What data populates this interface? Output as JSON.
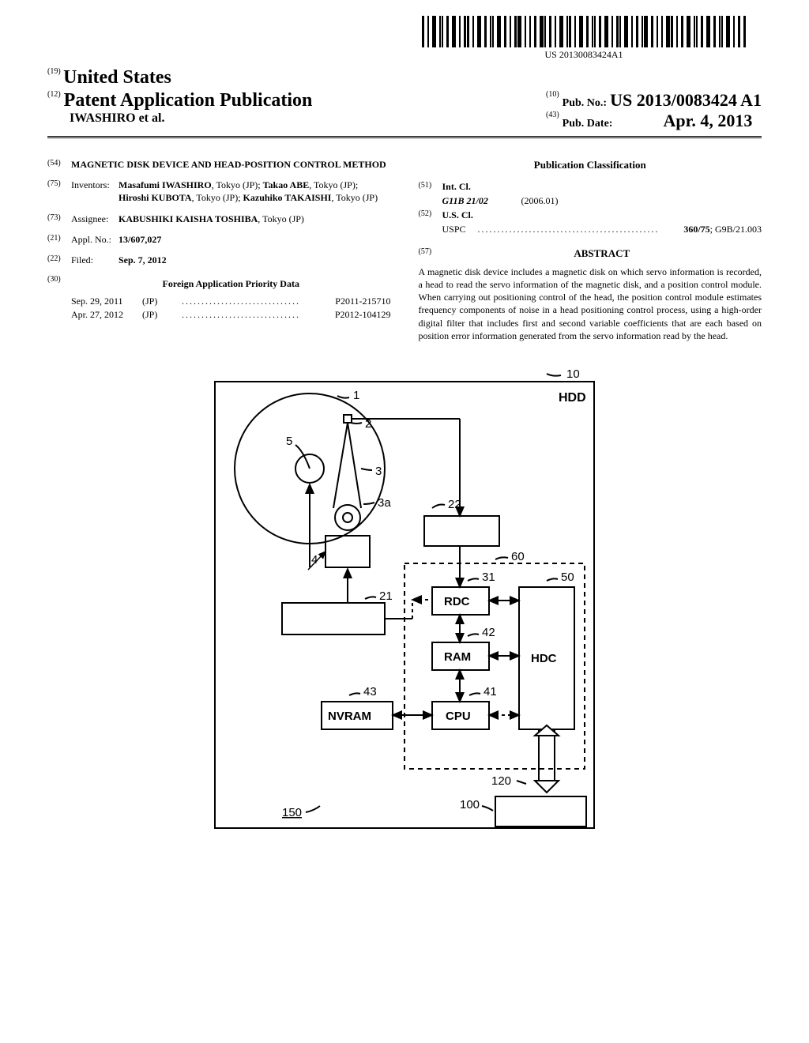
{
  "barcode_text": "US 20130083424A1",
  "header": {
    "line19_num": "(19)",
    "country": "United States",
    "line12_num": "(12)",
    "pub_type": "Patent Application Publication",
    "authors_line": "IWASHIRO et al.",
    "line10_num": "(10)",
    "pub_no_label": "Pub. No.:",
    "pub_no_value": "US 2013/0083424 A1",
    "line43_num": "(43)",
    "pub_date_label": "Pub. Date:",
    "pub_date_value": "Apr. 4, 2013"
  },
  "left": {
    "f54_num": "(54)",
    "title": "MAGNETIC DISK DEVICE AND HEAD-POSITION CONTROL METHOD",
    "f75_num": "(75)",
    "f75_label": "Inventors:",
    "inventors": [
      {
        "name": "Masafumi IWASHIRO",
        "loc": ", Tokyo (JP); "
      },
      {
        "name": "Takao ABE",
        "loc": ", Tokyo (JP); "
      },
      {
        "name": "Hiroshi KUBOTA",
        "loc": ", Tokyo (JP); "
      },
      {
        "name": "Kazuhiko TAKAISHI",
        "loc": ", Tokyo (JP)"
      }
    ],
    "f73_num": "(73)",
    "f73_label": "Assignee:",
    "assignee_name": "KABUSHIKI KAISHA TOSHIBA",
    "assignee_loc": ", Tokyo (JP)",
    "f21_num": "(21)",
    "f21_label": "Appl. No.:",
    "appl_no": "13/607,027",
    "f22_num": "(22)",
    "f22_label": "Filed:",
    "filed": "Sep. 7, 2012",
    "f30_num": "(30)",
    "priority_title": "Foreign Application Priority Data",
    "priority": [
      {
        "date": "Sep. 29, 2011",
        "country": "(JP)",
        "num": "P2011-215710"
      },
      {
        "date": "Apr. 27, 2012",
        "country": "(JP)",
        "num": "P2012-104129"
      }
    ]
  },
  "right": {
    "classification_title": "Publication Classification",
    "f51_num": "(51)",
    "f51_label": "Int. Cl.",
    "intcl_code": "G11B 21/02",
    "intcl_date": "(2006.01)",
    "f52_num": "(52)",
    "f52_label": "U.S. Cl.",
    "uscl_label": "USPC",
    "uscl_value": "360/75",
    "uscl_extra": "; G9B/21.003",
    "f57_num": "(57)",
    "abstract_title": "ABSTRACT",
    "abstract": "A magnetic disk device includes a magnetic disk on which servo information is recorded, a head to read the servo information of the magnetic disk, and a position control module. When carrying out positioning control of the head, the position control module estimates frequency components of noise in a head positioning control process, using a high-order digital filter that includes first and second variable coefficients that are each based on position error information generated from the servo information read by the head."
  },
  "figure": {
    "labels": {
      "hdd": "HDD",
      "rdc": "RDC",
      "ram": "RAM",
      "hdc": "HDC",
      "nvram": "NVRAM",
      "cpu": "CPU",
      "n1": "1",
      "n2": "2",
      "n3": "3",
      "n3a": "3a",
      "n4": "4",
      "n5": "5",
      "n10": "10",
      "n21": "21",
      "n22": "22",
      "n31": "31",
      "n41": "41",
      "n42": "42",
      "n43": "43",
      "n50": "50",
      "n60": "60",
      "n100": "100",
      "n120": "120",
      "n150": "150"
    },
    "style": {
      "stroke": "#000000",
      "stroke_width": 2,
      "dash": "6,5",
      "font_family": "Arial, sans-serif",
      "label_fontsize": 16,
      "num_fontsize": 15,
      "box_font_weight": "bold"
    }
  }
}
